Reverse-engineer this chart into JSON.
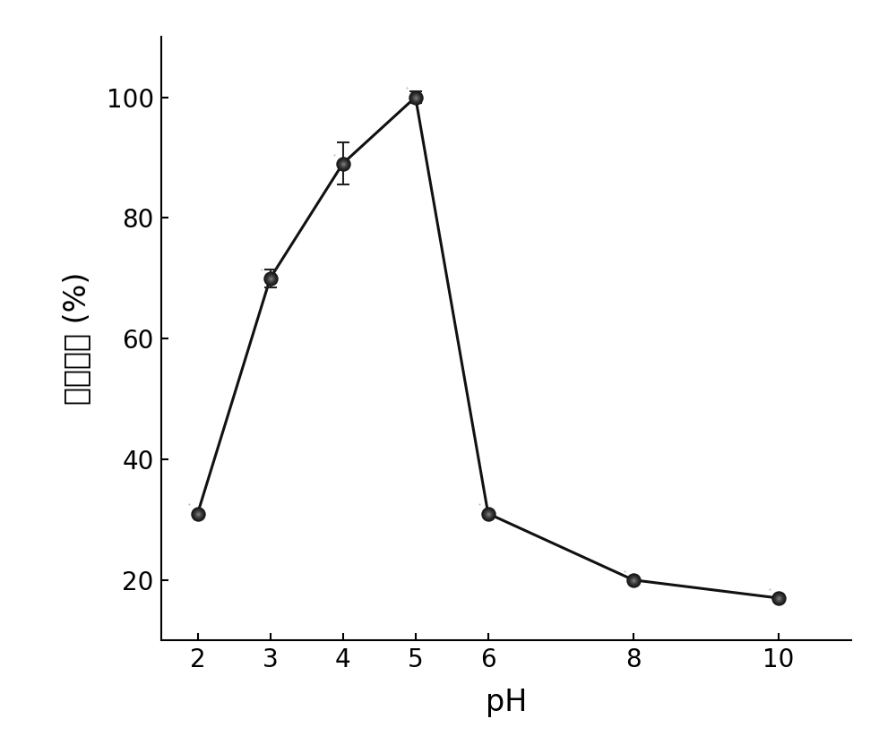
{
  "x": [
    2,
    3,
    4,
    5,
    6,
    8,
    10
  ],
  "y": [
    31,
    70,
    89,
    100,
    31,
    20,
    17
  ],
  "yerr": [
    0,
    1.5,
    3.5,
    1.0,
    0,
    0,
    0
  ],
  "xlabel": "pH",
  "ylabel": "相对活性 (%)",
  "xlim": [
    1.5,
    11.0
  ],
  "ylim": [
    10,
    110
  ],
  "yticks": [
    20,
    40,
    60,
    80,
    100
  ],
  "xticks": [
    2,
    3,
    4,
    5,
    6,
    8,
    10
  ],
  "marker_size_outer": 18,
  "line_color": "#111111",
  "line_width": 2.2,
  "background_color": "#ffffff",
  "xlabel_fontsize": 24,
  "ylabel_fontsize": 24,
  "tick_fontsize": 20
}
